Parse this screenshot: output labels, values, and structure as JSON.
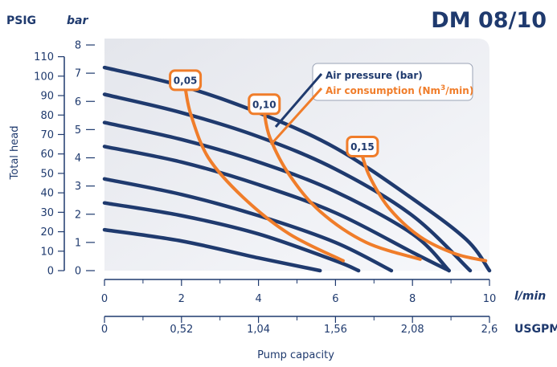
{
  "chart_data": {
    "type": "line",
    "title": "DM 08/10",
    "xlabel": "Pump capacity",
    "ylabel": "Total head",
    "x_unit_primary": "l/min",
    "x_unit_secondary": "USGPM",
    "y_unit_left": "PSIG",
    "y_unit_right": "bar",
    "xlim": [
      0,
      10
    ],
    "ylim": [
      0,
      8
    ],
    "x_ticks_primary": [
      "0",
      "2",
      "4",
      "6",
      "8",
      "10"
    ],
    "x_ticks_secondary": [
      "0",
      "0,52",
      "1,04",
      "1,56",
      "2,08",
      "2,6"
    ],
    "x_ticks_secondary_values": [
      0,
      2,
      4,
      6,
      8,
      10
    ],
    "y_ticks_bar": [
      "0",
      "1",
      "2",
      "3",
      "4",
      "5",
      "6",
      "7",
      "8"
    ],
    "y_ticks_bar_values": [
      0,
      1,
      2,
      3,
      4,
      5,
      6,
      7,
      8
    ],
    "y_ticks_psig": [
      "0",
      "10",
      "20",
      "30",
      "40",
      "50",
      "60",
      "70",
      "80",
      "90",
      "100",
      "110"
    ],
    "y_ticks_psig_values": [
      0,
      10,
      20,
      30,
      40,
      50,
      60,
      70,
      80,
      90,
      100,
      110
    ],
    "legend": {
      "placement": "top-right",
      "air_pressure_label": "Air pressure (bar)",
      "air_consumption_label": "Air consumption (Nm",
      "air_consumption_sup": "3",
      "air_consumption_suffix": "/min)"
    },
    "pressure_color": "#1f3a6e",
    "consumption_color": "#f07d2a",
    "pressure_series": [
      {
        "x": [
          0,
          2,
          4,
          6,
          8,
          9.4,
          10
        ],
        "y": [
          7.2,
          6.55,
          5.6,
          4.35,
          2.55,
          1.1,
          0
        ]
      },
      {
        "x": [
          0,
          2,
          4,
          6,
          8,
          9.5
        ],
        "y": [
          6.25,
          5.6,
          4.75,
          3.6,
          1.95,
          0
        ]
      },
      {
        "x": [
          0,
          2,
          4,
          6,
          8,
          8.95
        ],
        "y": [
          5.25,
          4.65,
          3.85,
          2.8,
          1.3,
          0
        ]
      },
      {
        "x": [
          0,
          2,
          4,
          6,
          8,
          8.95
        ],
        "y": [
          4.4,
          3.85,
          3.05,
          2.05,
          0.65,
          0
        ]
      },
      {
        "x": [
          0,
          2,
          4,
          6,
          7.45
        ],
        "y": [
          3.25,
          2.7,
          1.95,
          1.0,
          0
        ]
      },
      {
        "x": [
          0,
          2,
          4,
          6,
          6.6
        ],
        "y": [
          2.4,
          1.95,
          1.3,
          0.35,
          0
        ]
      },
      {
        "x": [
          0,
          2,
          4,
          5.6
        ],
        "y": [
          1.45,
          1.05,
          0.45,
          0
        ]
      }
    ],
    "consumption_series": [
      {
        "label": "0,05",
        "label_x": 2.1,
        "label_y": 6.75,
        "x": [
          2.1,
          2.25,
          2.7,
          3.6,
          4.8,
          6.2
        ],
        "y": [
          6.45,
          5.5,
          4.0,
          2.6,
          1.3,
          0.35
        ]
      },
      {
        "label": "0,10",
        "label_x": 4.15,
        "label_y": 5.9,
        "x": [
          4.15,
          4.3,
          4.8,
          5.6,
          6.8,
          8.2
        ],
        "y": [
          5.6,
          4.7,
          3.4,
          2.1,
          1.0,
          0.4
        ]
      },
      {
        "label": "0,15",
        "label_x": 6.7,
        "label_y": 4.4,
        "x": [
          6.7,
          6.9,
          7.4,
          8.2,
          9.1,
          9.9
        ],
        "y": [
          4.05,
          3.3,
          2.2,
          1.2,
          0.6,
          0.35
        ]
      }
    ]
  }
}
